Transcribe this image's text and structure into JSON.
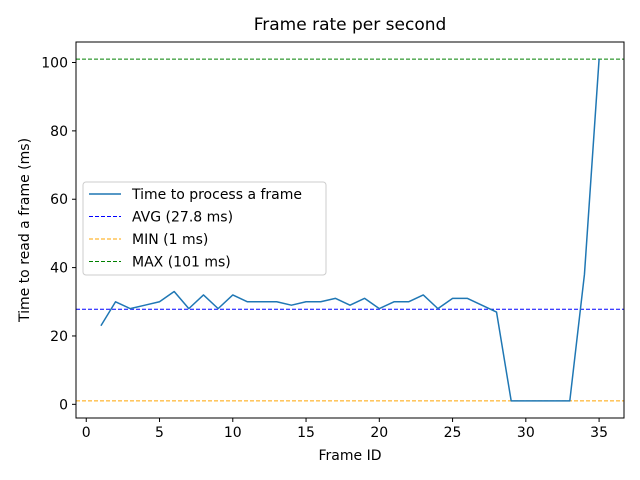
{
  "chart_data": {
    "type": "line",
    "title": "Frame rate per second",
    "xlabel": "Frame ID",
    "ylabel": "Time to read a frame (ms)",
    "xlim": [
      -0.7,
      36.7
    ],
    "ylim": [
      -4,
      106
    ],
    "xticks": [
      0,
      5,
      10,
      15,
      20,
      25,
      30,
      35
    ],
    "yticks": [
      0,
      20,
      40,
      60,
      80,
      100
    ],
    "grid": false,
    "legend": "center-left",
    "series": [
      {
        "name": "Time to process a frame",
        "color": "#1f77b4",
        "style": "solid",
        "x": [
          1,
          2,
          3,
          4,
          5,
          6,
          7,
          8,
          9,
          10,
          11,
          12,
          13,
          14,
          15,
          16,
          17,
          18,
          19,
          20,
          21,
          22,
          23,
          24,
          25,
          26,
          27,
          28,
          29,
          30,
          31,
          32,
          33,
          34,
          35
        ],
        "y": [
          23,
          30,
          28,
          29,
          30,
          33,
          28,
          32,
          28,
          32,
          30,
          30,
          30,
          29,
          30,
          30,
          31,
          29,
          31,
          28,
          30,
          30,
          32,
          28,
          31,
          31,
          29,
          27,
          1,
          1,
          1,
          1,
          1,
          38,
          101
        ]
      }
    ],
    "hlines": [
      {
        "name": "AVG (27.8 ms)",
        "y": 27.8,
        "color": "#0000ff",
        "style": "dashed"
      },
      {
        "name": "MIN (1 ms)",
        "y": 1,
        "color": "#ffa500",
        "style": "dashed"
      },
      {
        "name": "MAX (101 ms)",
        "y": 101,
        "color": "#008000",
        "style": "dashed"
      }
    ]
  }
}
